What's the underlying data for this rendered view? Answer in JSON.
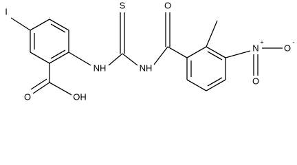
{
  "atoms": {
    "iodine": "I",
    "sulfur": "S",
    "nh_left": "NH",
    "nh_right": "NH",
    "carbonyl_o": "O",
    "nitro_n": "N",
    "nitro_plus": "+",
    "nitro_o_minus": "O",
    "nitro_minus": "-",
    "nitro_o": "O",
    "acid_o": "O",
    "acid_oh": "OH"
  }
}
